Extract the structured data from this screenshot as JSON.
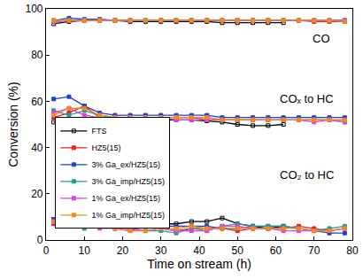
{
  "chart_data": {
    "type": "line",
    "x_label": "Time on stream (h)",
    "y_label": "Conversion (%)",
    "xlim": [
      0,
      80
    ],
    "xticks": [
      0,
      10,
      20,
      30,
      40,
      50,
      60,
      70,
      80
    ],
    "ylim": [
      0,
      100
    ],
    "yticks": [
      0,
      20,
      40,
      60,
      80,
      100
    ],
    "grid": false,
    "legend": "left",
    "x": [
      2,
      6,
      10,
      14,
      18,
      22,
      26,
      30,
      34,
      38,
      42,
      46,
      50,
      54,
      58,
      62,
      66,
      70,
      74,
      78
    ],
    "annotations": [
      {
        "text": "CO",
        "x": 72,
        "y": 87
      },
      {
        "text": "COₓ to HC",
        "x": 68,
        "y": 61
      },
      {
        "text": "CO₂ to HC",
        "x": 68,
        "y": 28
      }
    ],
    "series": [
      {
        "name": "FTS",
        "color": "#000000",
        "marker": "square-open",
        "values": [
          [
            93.5,
            94.5,
            95,
            95,
            95,
            94.5,
            94.5,
            94.5,
            94.5,
            94.5,
            94.5,
            94,
            94,
            94,
            94,
            94,
            null,
            null,
            null,
            null
          ],
          [
            51,
            52,
            52,
            52,
            52,
            52,
            52,
            52,
            52,
            52,
            51.5,
            51,
            50,
            49.5,
            49.5,
            50,
            null,
            null,
            null,
            null
          ],
          [
            9,
            9,
            9,
            8,
            8,
            8,
            8,
            7,
            7,
            8,
            8,
            9.5,
            7,
            6,
            5,
            6,
            null,
            null,
            null,
            null
          ]
        ]
      },
      {
        "name": "HZ5(15)",
        "color": "#e8201c",
        "marker": "square",
        "values": [
          [
            94.5,
            95,
            95,
            95,
            95,
            95,
            95,
            95,
            95,
            95,
            95,
            95,
            95,
            95,
            95,
            95,
            95,
            94.5,
            94.5,
            94.5
          ],
          [
            53,
            55,
            58,
            53,
            53,
            53,
            53,
            53,
            53,
            53,
            52,
            52,
            52,
            52,
            52,
            52,
            52,
            52,
            52,
            52
          ],
          [
            7,
            7,
            6,
            6,
            5,
            4,
            6,
            5,
            4,
            5,
            5,
            5,
            4,
            5,
            5,
            5,
            6,
            5,
            4,
            5
          ]
        ]
      },
      {
        "name": "3% Ga_ex/HZ5(15)",
        "color": "#1f3fd6",
        "marker": "square",
        "values": [
          [
            95,
            96,
            95.5,
            95.5,
            95,
            95,
            95,
            95,
            95,
            95,
            95,
            95,
            95,
            95,
            95,
            95,
            95,
            95,
            95,
            95
          ],
          [
            61,
            62,
            58,
            55,
            54,
            54,
            54,
            54,
            54,
            54,
            54,
            53,
            53,
            53,
            53,
            53,
            53,
            53,
            53,
            53
          ],
          [
            9,
            8,
            7,
            7,
            7,
            6,
            6,
            6,
            6,
            6,
            6,
            5,
            5,
            6,
            6,
            6,
            5,
            4,
            3,
            3
          ]
        ]
      },
      {
        "name": "3% Ga_imp/HZ5(15)",
        "color": "#1f9e8e",
        "marker": "square",
        "values": [
          [
            94.5,
            95,
            95,
            95,
            95,
            95,
            95,
            95,
            95,
            95,
            95,
            95,
            95,
            95,
            95,
            95,
            95,
            95,
            95,
            95
          ],
          [
            56,
            54,
            56,
            54,
            53,
            53,
            53,
            53,
            53,
            53,
            53,
            52,
            52,
            52,
            52,
            52,
            52,
            52,
            52,
            51
          ],
          [
            8,
            6,
            5,
            6,
            5,
            5,
            4,
            4,
            3,
            5,
            4,
            6,
            7,
            6,
            6,
            6,
            5,
            4,
            5,
            6
          ]
        ]
      },
      {
        "name": "1% Ga_ex/HZ5(15)",
        "color": "#e040e0",
        "marker": "square",
        "values": [
          [
            94.5,
            95,
            95,
            95,
            95,
            95,
            95,
            95,
            95,
            95,
            95,
            95,
            95,
            95,
            95,
            95,
            95,
            95,
            95,
            95
          ],
          [
            55,
            57,
            54,
            53,
            53,
            53,
            53,
            53,
            52,
            52,
            52,
            52,
            52,
            52,
            52,
            52,
            52,
            51,
            52,
            51
          ],
          [
            8,
            7,
            6,
            5,
            5,
            5,
            4,
            5,
            4,
            4,
            4,
            6,
            6,
            5,
            5,
            4,
            4,
            4,
            4,
            5
          ]
        ]
      },
      {
        "name": "1% Ga_imp/HZ5(15)",
        "color": "#f08a1c",
        "marker": "square",
        "values": [
          [
            95,
            95,
            95,
            95,
            95,
            95,
            95,
            95,
            95,
            95,
            95,
            95,
            95,
            95,
            95,
            95,
            95,
            95,
            95,
            94.5
          ],
          [
            54,
            57,
            57,
            54,
            53,
            53,
            53,
            53,
            53,
            53,
            53,
            52,
            52,
            52,
            52,
            52,
            52,
            52,
            52,
            52
          ],
          [
            8,
            8,
            7,
            6,
            5,
            4,
            4,
            5,
            5,
            6,
            5,
            5,
            5,
            5,
            5,
            5,
            5,
            4,
            4,
            5
          ]
        ]
      }
    ]
  }
}
